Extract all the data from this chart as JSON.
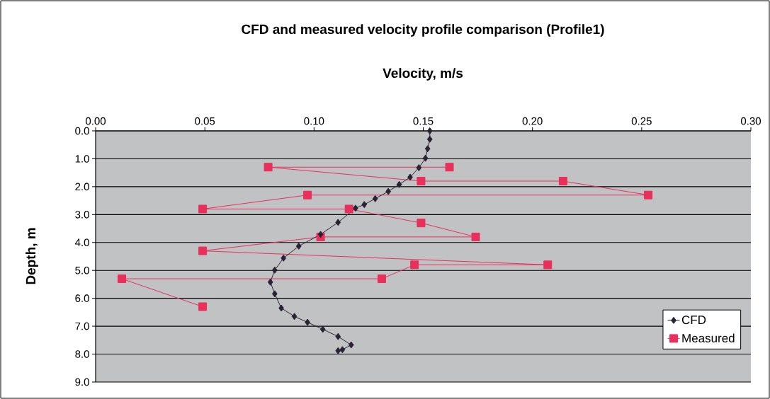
{
  "chart_data": {
    "type": "line",
    "title": "CFD and measured velocity profile comparison (Profile1)",
    "xlabel": "Velocity, m/s",
    "ylabel": "Depth, m",
    "xlim": [
      0,
      0.3
    ],
    "xticks": [
      {
        "value": 0,
        "label": "0.00"
      },
      {
        "value": 0.05,
        "label": "0.05"
      },
      {
        "value": 0.1,
        "label": "0.10"
      },
      {
        "value": 0.15,
        "label": "0.15"
      },
      {
        "value": 0.2,
        "label": "0.20"
      },
      {
        "value": 0.25,
        "label": "0.25"
      },
      {
        "value": 0.3,
        "label": "0.30"
      }
    ],
    "ylim": [
      9,
      0
    ],
    "yticks": [
      {
        "value": 0,
        "label": "0.0"
      },
      {
        "value": 1,
        "label": "1.0"
      },
      {
        "value": 2,
        "label": "2.0"
      },
      {
        "value": 3,
        "label": "3.0"
      },
      {
        "value": 4,
        "label": "4.0"
      },
      {
        "value": 5,
        "label": "5.0"
      },
      {
        "value": 6,
        "label": "6.0"
      },
      {
        "value": 7,
        "label": "7.0"
      },
      {
        "value": 8,
        "label": "8.0"
      },
      {
        "value": 9,
        "label": "9.0"
      }
    ],
    "grid": "y",
    "legend": "bottom right",
    "line_style": "solid",
    "series": [
      {
        "name": "CFD",
        "color": "#2b2233",
        "marker": "diamond",
        "x": [
          0.153,
          0.153,
          0.152,
          0.151,
          0.148,
          0.144,
          0.139,
          0.134,
          0.128,
          0.123,
          0.119,
          0.111,
          0.103,
          0.093,
          0.086,
          0.082,
          0.08,
          0.082,
          0.085,
          0.091,
          0.097,
          0.104,
          0.111,
          0.117,
          0.113,
          0.111
        ],
        "values": [
          0.0,
          0.3,
          0.64,
          0.98,
          1.32,
          1.66,
          1.92,
          2.17,
          2.43,
          2.64,
          2.77,
          3.28,
          3.71,
          4.13,
          4.56,
          4.99,
          5.42,
          5.84,
          6.35,
          6.65,
          6.86,
          7.11,
          7.37,
          7.67,
          7.84,
          7.88
        ]
      },
      {
        "name": "Measured",
        "color": "#e8305a",
        "marker": "square",
        "x": [
          0.162,
          0.079,
          0.149,
          0.214,
          0.253,
          0.097,
          0.049,
          0.116,
          0.149,
          0.174,
          0.103,
          0.049,
          0.207,
          0.146,
          0.131,
          0.012,
          0.049
        ],
        "values": [
          1.3,
          1.3,
          1.8,
          1.8,
          2.3,
          2.3,
          2.8,
          2.8,
          3.3,
          3.8,
          3.8,
          4.3,
          4.8,
          4.8,
          5.3,
          5.3,
          6.3
        ]
      }
    ]
  }
}
